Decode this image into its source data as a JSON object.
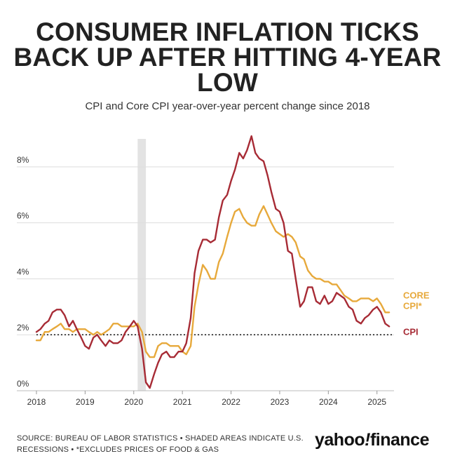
{
  "header": {
    "title_lines": [
      "CONSUMER INFLATION TICKS",
      "BACK UP AFTER HITTING 4-YEAR",
      "LOW"
    ],
    "subtitle": "CPI and Core CPI year-over-year percent change since 2018"
  },
  "footer": {
    "source_line1": "SOURCE: BUREAU OF LABOR STATISTICS • SHADED AREAS INDICATE U.S.",
    "source_line2": "RECESSIONS • *EXCLUDES PRICES OF FOOD & GAS",
    "logo_yahoo": "yahoo",
    "logo_bang": "!",
    "logo_finance": "finance"
  },
  "chart_data": {
    "type": "line",
    "title": "CPI and Core CPI year-over-year percent change since 2018",
    "xlabel": "",
    "ylabel": "",
    "xlim": [
      2018.0,
      2025.35
    ],
    "ylim": [
      0,
      9
    ],
    "yticks": [
      0,
      2,
      4,
      6,
      8
    ],
    "ytick_labels": [
      "0%",
      "2%",
      "4%",
      "6%",
      "8%"
    ],
    "xticks": [
      2018,
      2019,
      2020,
      2021,
      2022,
      2023,
      2024,
      2025
    ],
    "xtick_labels": [
      "2018",
      "2019",
      "2020",
      "2021",
      "2022",
      "2023",
      "2024",
      "2025"
    ],
    "grid": true,
    "reference_line": {
      "y": 2,
      "style": "dotted"
    },
    "recession": {
      "start": 2020.08,
      "end": 2020.25
    },
    "colors": {
      "cpi": "#a72b35",
      "core": "#e7a93b",
      "grid": "#dddddd",
      "recession": "#e3e3e3",
      "text": "#333333"
    },
    "series": [
      {
        "name": "CPI",
        "label": "CPI",
        "color": "#a72b35",
        "x": [
          2018.0,
          2018.08,
          2018.17,
          2018.25,
          2018.33,
          2018.42,
          2018.5,
          2018.58,
          2018.67,
          2018.75,
          2018.83,
          2018.92,
          2019.0,
          2019.08,
          2019.17,
          2019.25,
          2019.33,
          2019.42,
          2019.5,
          2019.58,
          2019.67,
          2019.75,
          2019.83,
          2019.92,
          2020.0,
          2020.08,
          2020.17,
          2020.25,
          2020.33,
          2020.42,
          2020.5,
          2020.58,
          2020.67,
          2020.75,
          2020.83,
          2020.92,
          2021.0,
          2021.08,
          2021.17,
          2021.25,
          2021.33,
          2021.42,
          2021.5,
          2021.58,
          2021.67,
          2021.75,
          2021.83,
          2021.92,
          2022.0,
          2022.08,
          2022.17,
          2022.25,
          2022.33,
          2022.42,
          2022.5,
          2022.58,
          2022.67,
          2022.75,
          2022.83,
          2022.92,
          2023.0,
          2023.08,
          2023.17,
          2023.25,
          2023.33,
          2023.42,
          2023.5,
          2023.58,
          2023.67,
          2023.75,
          2023.83,
          2023.92,
          2024.0,
          2024.08,
          2024.17,
          2024.25,
          2024.33,
          2024.42,
          2024.5,
          2024.58,
          2024.67,
          2024.75,
          2024.83,
          2024.92,
          2025.0,
          2025.08,
          2025.17,
          2025.25
        ],
        "values": [
          2.1,
          2.2,
          2.4,
          2.5,
          2.8,
          2.9,
          2.9,
          2.7,
          2.3,
          2.5,
          2.2,
          1.9,
          1.6,
          1.5,
          1.9,
          2.0,
          1.8,
          1.6,
          1.8,
          1.7,
          1.7,
          1.8,
          2.1,
          2.3,
          2.5,
          2.3,
          1.5,
          0.3,
          0.1,
          0.6,
          1.0,
          1.3,
          1.4,
          1.2,
          1.2,
          1.4,
          1.4,
          1.7,
          2.6,
          4.2,
          5.0,
          5.4,
          5.4,
          5.3,
          5.4,
          6.2,
          6.8,
          7.0,
          7.5,
          7.9,
          8.5,
          8.3,
          8.6,
          9.1,
          8.5,
          8.3,
          8.2,
          7.7,
          7.1,
          6.5,
          6.4,
          6.0,
          5.0,
          4.9,
          4.0,
          3.0,
          3.2,
          3.7,
          3.7,
          3.2,
          3.1,
          3.4,
          3.1,
          3.2,
          3.5,
          3.4,
          3.3,
          3.0,
          2.9,
          2.5,
          2.4,
          2.6,
          2.7,
          2.9,
          3.0,
          2.8,
          2.4,
          2.3
        ],
        "end_label": "CPI"
      },
      {
        "name": "Core CPI*",
        "label": "CORE CPI*",
        "color": "#e7a93b",
        "x": [
          2018.0,
          2018.08,
          2018.17,
          2018.25,
          2018.33,
          2018.42,
          2018.5,
          2018.58,
          2018.67,
          2018.75,
          2018.83,
          2018.92,
          2019.0,
          2019.08,
          2019.17,
          2019.25,
          2019.33,
          2019.42,
          2019.5,
          2019.58,
          2019.67,
          2019.75,
          2019.83,
          2019.92,
          2020.0,
          2020.08,
          2020.17,
          2020.25,
          2020.33,
          2020.42,
          2020.5,
          2020.58,
          2020.67,
          2020.75,
          2020.83,
          2020.92,
          2021.0,
          2021.08,
          2021.17,
          2021.25,
          2021.33,
          2021.42,
          2021.5,
          2021.58,
          2021.67,
          2021.75,
          2021.83,
          2021.92,
          2022.0,
          2022.08,
          2022.17,
          2022.25,
          2022.33,
          2022.42,
          2022.5,
          2022.58,
          2022.67,
          2022.75,
          2022.83,
          2022.92,
          2023.0,
          2023.08,
          2023.17,
          2023.25,
          2023.33,
          2023.42,
          2023.5,
          2023.58,
          2023.67,
          2023.75,
          2023.83,
          2023.92,
          2024.0,
          2024.08,
          2024.17,
          2024.25,
          2024.33,
          2024.42,
          2024.5,
          2024.58,
          2024.67,
          2024.75,
          2024.83,
          2024.92,
          2025.0,
          2025.08,
          2025.17,
          2025.25
        ],
        "values": [
          1.8,
          1.8,
          2.1,
          2.1,
          2.2,
          2.3,
          2.4,
          2.2,
          2.2,
          2.1,
          2.2,
          2.2,
          2.2,
          2.1,
          2.0,
          2.1,
          2.0,
          2.1,
          2.2,
          2.4,
          2.4,
          2.3,
          2.3,
          2.3,
          2.3,
          2.4,
          2.1,
          1.4,
          1.2,
          1.2,
          1.6,
          1.7,
          1.7,
          1.6,
          1.6,
          1.6,
          1.4,
          1.3,
          1.6,
          3.0,
          3.8,
          4.5,
          4.3,
          4.0,
          4.0,
          4.6,
          4.9,
          5.5,
          6.0,
          6.4,
          6.5,
          6.2,
          6.0,
          5.9,
          5.9,
          6.3,
          6.6,
          6.3,
          6.0,
          5.7,
          5.6,
          5.5,
          5.6,
          5.5,
          5.3,
          4.8,
          4.7,
          4.3,
          4.1,
          4.0,
          4.0,
          3.9,
          3.9,
          3.8,
          3.8,
          3.6,
          3.4,
          3.3,
          3.2,
          3.2,
          3.3,
          3.3,
          3.3,
          3.2,
          3.3,
          3.1,
          2.8,
          2.8
        ],
        "end_label": "CORE CPI*"
      }
    ]
  }
}
